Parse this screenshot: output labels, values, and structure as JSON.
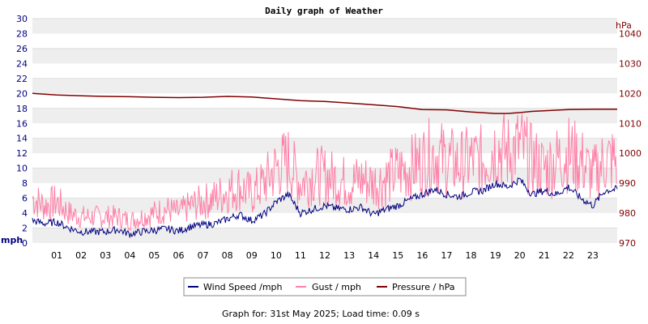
{
  "chart_data": {
    "type": "line",
    "title": "Daily graph of Weather",
    "y_left": {
      "unit": "mph",
      "min": 0,
      "max": 30,
      "ticks": [
        "0",
        "2",
        "4",
        "6",
        "8",
        "10",
        "12",
        "14",
        "16",
        "18",
        "20",
        "22",
        "24",
        "26",
        "28",
        "30"
      ]
    },
    "y_right": {
      "unit": "hPa",
      "min": 970,
      "max": 1045,
      "ticks": [
        "970",
        "980",
        "990",
        "1000",
        "1010",
        "1020",
        "1030",
        "1040"
      ]
    },
    "x": {
      "min": 0,
      "max": 24,
      "ticks": [
        "01",
        "02",
        "03",
        "04",
        "05",
        "06",
        "07",
        "08",
        "09",
        "10",
        "11",
        "12",
        "13",
        "14",
        "15",
        "16",
        "17",
        "18",
        "19",
        "20",
        "21",
        "22",
        "23"
      ]
    },
    "grid": "horizontal bands",
    "legend_position": "bottom",
    "series": [
      {
        "name": "Wind Speed /mph",
        "axis": "left",
        "color": "#000080",
        "x": [
          0,
          0.5,
          1,
          1.5,
          2,
          2.5,
          3,
          3.5,
          4,
          4.5,
          5,
          5.5,
          6,
          6.5,
          7,
          7.5,
          8,
          8.5,
          9,
          9.5,
          10,
          10.5,
          11,
          11.5,
          12,
          12.5,
          13,
          13.5,
          14,
          14.5,
          15,
          15.5,
          16,
          16.5,
          17,
          17.5,
          18,
          18.5,
          19,
          19.5,
          20,
          20.5,
          21,
          21.5,
          22,
          22.5,
          23,
          23.5,
          24
        ],
        "y": [
          3,
          2.6,
          2.8,
          2.0,
          1.5,
          1.5,
          1.5,
          1.8,
          1.2,
          1.5,
          1.7,
          1.9,
          1.6,
          2.2,
          2.4,
          2.6,
          3.2,
          3.8,
          3.0,
          3.8,
          5.5,
          6.5,
          4.0,
          4.5,
          5.0,
          4.6,
          4.5,
          4.8,
          3.8,
          4.5,
          5.0,
          5.8,
          6.5,
          7.2,
          6.5,
          6.2,
          6.8,
          7.0,
          8.0,
          7.5,
          8.5,
          6.5,
          7.0,
          6.5,
          7.5,
          6.0,
          5.0,
          7.0,
          7.2
        ]
      },
      {
        "name": "Gust / mph",
        "axis": "left",
        "color": "#ff80a8",
        "x": [
          0,
          0.5,
          1,
          1.5,
          2,
          2.5,
          3,
          3.5,
          4,
          4.5,
          5,
          5.5,
          6,
          6.5,
          7,
          7.5,
          8,
          8.5,
          9,
          9.5,
          10,
          10.5,
          11,
          11.5,
          12,
          12.5,
          13,
          13.5,
          14,
          14.5,
          15,
          15.5,
          16,
          16.5,
          17,
          17.5,
          18,
          18.5,
          19,
          19.5,
          20,
          20.5,
          21,
          21.5,
          22,
          22.5,
          23,
          23.5,
          24
        ],
        "y": [
          6,
          5,
          5.5,
          4,
          3.5,
          3.5,
          3.5,
          3.5,
          3,
          3.5,
          4,
          4.5,
          4,
          5,
          5.5,
          6,
          7,
          7.5,
          6.5,
          8,
          10,
          11,
          8,
          9,
          9,
          8.5,
          8,
          8.5,
          8,
          8.5,
          9.5,
          10,
          11,
          12,
          11,
          10.5,
          11,
          11,
          13,
          12,
          13,
          11,
          10,
          11,
          12,
          11,
          9,
          11,
          11
        ]
      },
      {
        "name": "Pressure / hPa",
        "axis": "right",
        "color": "#800000",
        "x": [
          0,
          1,
          2,
          3,
          4,
          5,
          6,
          7,
          8,
          9,
          10,
          11,
          12,
          13,
          14,
          15,
          16,
          17,
          18,
          19,
          19.5,
          20,
          20.5,
          21,
          22,
          23,
          24
        ],
        "y": [
          1020,
          1019.5,
          1019.2,
          1019,
          1018.9,
          1018.7,
          1018.6,
          1018.7,
          1019,
          1018.8,
          1018.2,
          1017.6,
          1017.3,
          1016.8,
          1016.2,
          1015.6,
          1014.6,
          1014.5,
          1013.8,
          1013.3,
          1013.3,
          1013.6,
          1014,
          1014.2,
          1014.6,
          1014.7,
          1014.7
        ]
      }
    ]
  },
  "footer": {
    "text": "Graph for: 31st May 2025; Load time: 0.09 s"
  }
}
